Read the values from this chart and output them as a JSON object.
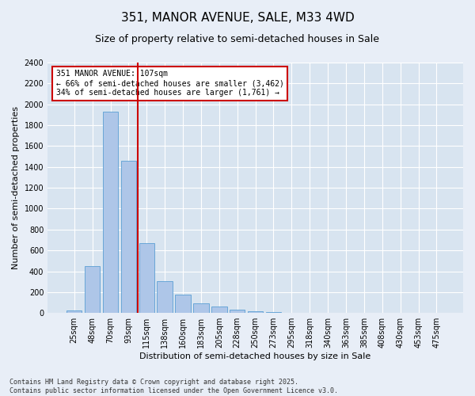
{
  "title": "351, MANOR AVENUE, SALE, M33 4WD",
  "subtitle": "Size of property relative to semi-detached houses in Sale",
  "xlabel": "Distribution of semi-detached houses by size in Sale",
  "ylabel": "Number of semi-detached properties",
  "footer": "Contains HM Land Registry data © Crown copyright and database right 2025.\nContains public sector information licensed under the Open Government Licence v3.0.",
  "categories": [
    "25sqm",
    "48sqm",
    "70sqm",
    "93sqm",
    "115sqm",
    "138sqm",
    "160sqm",
    "183sqm",
    "205sqm",
    "228sqm",
    "250sqm",
    "273sqm",
    "295sqm",
    "318sqm",
    "340sqm",
    "363sqm",
    "385sqm",
    "408sqm",
    "430sqm",
    "453sqm",
    "475sqm"
  ],
  "values": [
    25,
    450,
    1930,
    1460,
    670,
    305,
    175,
    95,
    60,
    35,
    20,
    10,
    0,
    0,
    0,
    0,
    0,
    0,
    0,
    0,
    0
  ],
  "bar_color": "#aec6e8",
  "bar_edge_color": "#5a9fd4",
  "property_label": "351 MANOR AVENUE: 107sqm",
  "pct_smaller": 66,
  "pct_smaller_count": "3,462",
  "pct_larger": 34,
  "pct_larger_count": "1,761",
  "vline_color": "#cc0000",
  "annotation_box_color": "#cc0000",
  "ylim": [
    0,
    2400
  ],
  "yticks": [
    0,
    200,
    400,
    600,
    800,
    1000,
    1200,
    1400,
    1600,
    1800,
    2000,
    2200,
    2400
  ],
  "background_color": "#e8eef7",
  "plot_background_color": "#d8e4f0",
  "grid_color": "#ffffff",
  "title_fontsize": 11,
  "subtitle_fontsize": 9,
  "axis_label_fontsize": 8,
  "tick_fontsize": 7,
  "footer_fontsize": 6,
  "annotation_fontsize": 7
}
